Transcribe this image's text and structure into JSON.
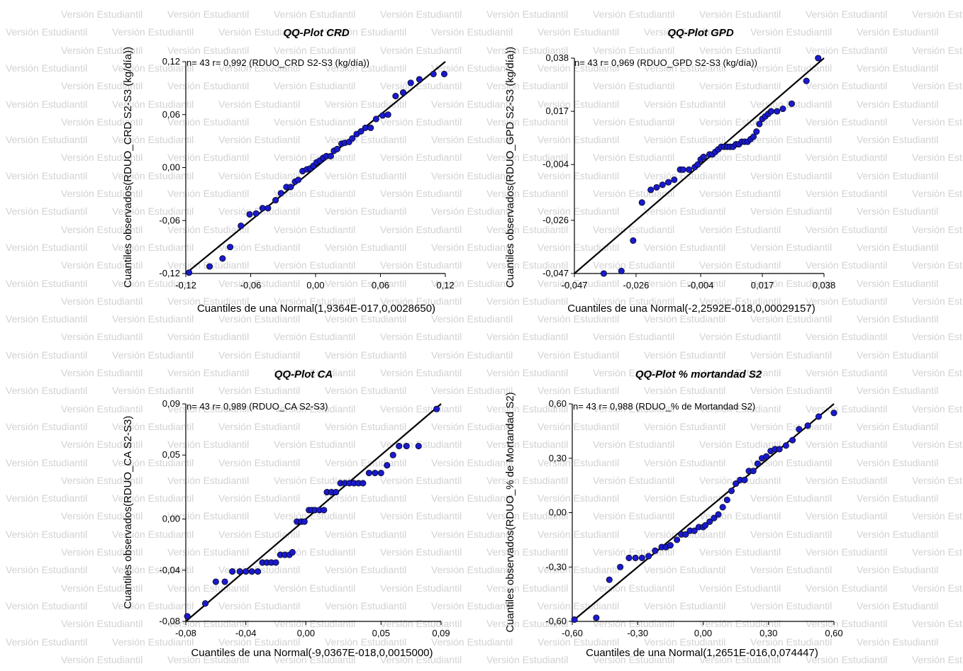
{
  "watermark_text": "Versión Estudiantil",
  "marker_color": "#1a1acc",
  "line_color": "#000000",
  "chart_data": [
    {
      "type": "scatter",
      "title": "QQ-Plot CRD",
      "annotation": "n= 43 r= 0,992 (RDUO_CRD S2-S3 (kg/día))",
      "xlabel": "Cuantiles de una Normal(1,9364E-017,0,0028650)",
      "ylabel": "Cuantiles observados(RDUO_CRD S2-S3 (kg/día))",
      "xlim": [
        -0.12,
        0.12
      ],
      "ylim": [
        -0.12,
        0.12
      ],
      "xticks": [
        -0.12,
        -0.06,
        0.0,
        0.06,
        0.12
      ],
      "xtick_labels": [
        "-0,12",
        "-0,06",
        "0,00",
        "0,06",
        "0,12"
      ],
      "yticks": [
        -0.12,
        -0.06,
        0.0,
        0.06,
        0.12
      ],
      "ytick_labels": [
        "-0,12",
        "-0,06",
        "0,00",
        "0,06",
        "0,12"
      ],
      "reference_line": [
        [
          -0.12,
          -0.12
        ],
        [
          0.12,
          0.12
        ]
      ],
      "points": [
        [
          -0.117,
          -0.119
        ],
        [
          -0.098,
          -0.112
        ],
        [
          -0.086,
          -0.103
        ],
        [
          -0.079,
          -0.09
        ],
        [
          -0.069,
          -0.066
        ],
        [
          -0.061,
          -0.053
        ],
        [
          -0.055,
          -0.052
        ],
        [
          -0.049,
          -0.046
        ],
        [
          -0.044,
          -0.046
        ],
        [
          -0.037,
          -0.037
        ],
        [
          -0.032,
          -0.029
        ],
        [
          -0.027,
          -0.022
        ],
        [
          -0.023,
          -0.022
        ],
        [
          -0.019,
          -0.016
        ],
        [
          -0.016,
          -0.014
        ],
        [
          -0.012,
          -0.004
        ],
        [
          -0.008,
          -0.002
        ],
        [
          -0.005,
          -0.001
        ],
        [
          -0.002,
          0.002
        ],
        [
          0.001,
          0.006
        ],
        [
          0.004,
          0.008
        ],
        [
          0.007,
          0.011
        ],
        [
          0.01,
          0.013
        ],
        [
          0.014,
          0.013
        ],
        [
          0.017,
          0.019
        ],
        [
          0.02,
          0.021
        ],
        [
          0.024,
          0.027
        ],
        [
          0.027,
          0.028
        ],
        [
          0.031,
          0.029
        ],
        [
          0.034,
          0.033
        ],
        [
          0.038,
          0.038
        ],
        [
          0.042,
          0.041
        ],
        [
          0.046,
          0.045
        ],
        [
          0.051,
          0.045
        ],
        [
          0.056,
          0.055
        ],
        [
          0.062,
          0.059
        ],
        [
          0.067,
          0.06
        ],
        [
          0.074,
          0.081
        ],
        [
          0.081,
          0.085
        ],
        [
          0.088,
          0.096
        ],
        [
          0.096,
          0.1
        ],
        [
          0.109,
          0.106
        ],
        [
          0.119,
          0.106
        ]
      ]
    },
    {
      "type": "scatter",
      "title": "QQ-Plot GPD",
      "annotation": "n= 43 r= 0,969 (RDUO_GPD S2-S3 (kg/día))",
      "xlabel": "Cuantiles de una Normal(-2,2592E-018,0,00029157)",
      "ylabel": "Cuantiles observados(RDUO_GPD S2-S3 (kg/día))",
      "xlim": [
        -0.047,
        0.038
      ],
      "ylim": [
        -0.047,
        0.038
      ],
      "xticks": [
        -0.047,
        -0.026,
        -0.004,
        0.017,
        0.038
      ],
      "xtick_labels": [
        "-0,047",
        "-0,026",
        "-0,004",
        "0,017",
        "0,038"
      ],
      "yticks": [
        -0.047,
        -0.026,
        -0.004,
        0.017,
        0.038
      ],
      "ytick_labels": [
        "-0,047",
        "-0,026",
        "-0,004",
        "0,017",
        "0,038"
      ],
      "reference_line": [
        [
          -0.047,
          -0.047
        ],
        [
          0.038,
          0.038
        ]
      ],
      "points": [
        [
          -0.037,
          -0.047
        ],
        [
          -0.031,
          -0.046
        ],
        [
          -0.027,
          -0.034
        ],
        [
          -0.024,
          -0.019
        ],
        [
          -0.021,
          -0.014
        ],
        [
          -0.019,
          -0.013
        ],
        [
          -0.017,
          -0.012
        ],
        [
          -0.015,
          -0.011
        ],
        [
          -0.013,
          -0.01
        ],
        [
          -0.011,
          -0.006
        ],
        [
          -0.01,
          -0.006
        ],
        [
          -0.008,
          -0.006
        ],
        [
          -0.006,
          -0.005
        ],
        [
          -0.005,
          -0.004
        ],
        [
          -0.004,
          -0.002
        ],
        [
          -0.003,
          -0.001
        ],
        [
          -0.001,
          0.0
        ],
        [
          0.0,
          0.0
        ],
        [
          0.001,
          0.001
        ],
        [
          0.002,
          0.002
        ],
        [
          0.003,
          0.003
        ],
        [
          0.004,
          0.003
        ],
        [
          0.005,
          0.003
        ],
        [
          0.006,
          0.003
        ],
        [
          0.007,
          0.003
        ],
        [
          0.008,
          0.004
        ],
        [
          0.009,
          0.004
        ],
        [
          0.01,
          0.005
        ],
        [
          0.011,
          0.005
        ],
        [
          0.012,
          0.005
        ],
        [
          0.013,
          0.006
        ],
        [
          0.014,
          0.007
        ],
        [
          0.015,
          0.009
        ],
        [
          0.016,
          0.012
        ],
        [
          0.017,
          0.014
        ],
        [
          0.018,
          0.015
        ],
        [
          0.019,
          0.016
        ],
        [
          0.02,
          0.017
        ],
        [
          0.022,
          0.017
        ],
        [
          0.024,
          0.018
        ],
        [
          0.027,
          0.02
        ],
        [
          0.032,
          0.029
        ],
        [
          0.036,
          0.038
        ]
      ]
    },
    {
      "type": "scatter",
      "title": "QQ-Plot CA",
      "annotation": "n= 43 r= 0,989 (RDUO_CA S2-S3)",
      "xlabel": "Cuantiles de una Normal(-9,0367E-018,0,0015000)",
      "ylabel": "Cuantiles observados(RDUO_CA S2-S3)",
      "xlim": [
        -0.08,
        0.09
      ],
      "ylim": [
        -0.08,
        0.09
      ],
      "xticks": [
        -0.08,
        -0.04,
        0.0,
        0.05,
        0.09
      ],
      "xtick_labels": [
        "-0,08",
        "-0,04",
        "0,00",
        "0,05",
        "0,09"
      ],
      "yticks": [
        -0.08,
        -0.04,
        0.0,
        0.05,
        0.09
      ],
      "ytick_labels": [
        "-0,08",
        "-0,04",
        "0,00",
        "0,05",
        "0,09"
      ],
      "reference_line": [
        [
          -0.08,
          -0.08
        ],
        [
          0.09,
          0.09
        ]
      ],
      "points": [
        [
          -0.079,
          -0.076
        ],
        [
          -0.067,
          -0.066
        ],
        [
          -0.06,
          -0.049
        ],
        [
          -0.054,
          -0.049
        ],
        [
          -0.049,
          -0.041
        ],
        [
          -0.044,
          -0.041
        ],
        [
          -0.04,
          -0.041
        ],
        [
          -0.036,
          -0.041
        ],
        [
          -0.032,
          -0.041
        ],
        [
          -0.029,
          -0.034
        ],
        [
          -0.026,
          -0.034
        ],
        [
          -0.023,
          -0.034
        ],
        [
          -0.02,
          -0.034
        ],
        [
          -0.017,
          -0.028
        ],
        [
          -0.014,
          -0.028
        ],
        [
          -0.011,
          -0.028
        ],
        [
          -0.009,
          -0.026
        ],
        [
          -0.006,
          -0.002
        ],
        [
          -0.003,
          -0.002
        ],
        [
          -0.001,
          -0.002
        ],
        [
          0.002,
          0.007
        ],
        [
          0.004,
          0.007
        ],
        [
          0.006,
          0.007
        ],
        [
          0.009,
          0.007
        ],
        [
          0.012,
          0.007
        ],
        [
          0.014,
          0.021
        ],
        [
          0.017,
          0.021
        ],
        [
          0.02,
          0.021
        ],
        [
          0.023,
          0.028
        ],
        [
          0.026,
          0.028
        ],
        [
          0.029,
          0.028
        ],
        [
          0.032,
          0.028
        ],
        [
          0.035,
          0.028
        ],
        [
          0.038,
          0.028
        ],
        [
          0.042,
          0.036
        ],
        [
          0.046,
          0.036
        ],
        [
          0.05,
          0.036
        ],
        [
          0.054,
          0.042
        ],
        [
          0.058,
          0.05
        ],
        [
          0.062,
          0.057
        ],
        [
          0.067,
          0.057
        ],
        [
          0.075,
          0.057
        ],
        [
          0.087,
          0.086
        ]
      ]
    },
    {
      "type": "scatter",
      "title": "QQ-Plot % mortandad S2",
      "annotation": "n= 43 r= 0,988 (RDUO_% de Mortandad S2)",
      "xlabel": "Cuantiles de una Normal(1,2651E-016,0,074447)",
      "ylabel": "Cuantiles observados(RDUO_% de Mortandad S2)",
      "xlim": [
        -0.6,
        0.6
      ],
      "ylim": [
        -0.6,
        0.6
      ],
      "xticks": [
        -0.6,
        -0.3,
        0.0,
        0.3,
        0.6
      ],
      "xtick_labels": [
        "-0,60",
        "-0,30",
        "0,00",
        "0,30",
        "0,60"
      ],
      "yticks": [
        -0.6,
        -0.3,
        0.0,
        0.3,
        0.6
      ],
      "ytick_labels": [
        "-0,60",
        "-0,30",
        "0,00",
        "0,30",
        "0,60"
      ],
      "reference_line": [
        [
          -0.6,
          -0.6
        ],
        [
          0.6,
          0.6
        ]
      ],
      "points": [
        [
          -0.59,
          -0.59
        ],
        [
          -0.49,
          -0.58
        ],
        [
          -0.43,
          -0.37
        ],
        [
          -0.38,
          -0.3
        ],
        [
          -0.34,
          -0.25
        ],
        [
          -0.31,
          -0.25
        ],
        [
          -0.28,
          -0.25
        ],
        [
          -0.25,
          -0.24
        ],
        [
          -0.22,
          -0.21
        ],
        [
          -0.19,
          -0.19
        ],
        [
          -0.17,
          -0.19
        ],
        [
          -0.15,
          -0.18
        ],
        [
          -0.12,
          -0.15
        ],
        [
          -0.1,
          -0.12
        ],
        [
          -0.08,
          -0.12
        ],
        [
          -0.06,
          -0.1
        ],
        [
          -0.04,
          -0.1
        ],
        [
          -0.02,
          -0.08
        ],
        [
          0.0,
          -0.08
        ],
        [
          0.01,
          -0.07
        ],
        [
          0.03,
          -0.05
        ],
        [
          0.05,
          -0.03
        ],
        [
          0.07,
          -0.01
        ],
        [
          0.09,
          0.03
        ],
        [
          0.11,
          0.07
        ],
        [
          0.13,
          0.12
        ],
        [
          0.15,
          0.16
        ],
        [
          0.17,
          0.18
        ],
        [
          0.19,
          0.18
        ],
        [
          0.21,
          0.23
        ],
        [
          0.23,
          0.23
        ],
        [
          0.25,
          0.27
        ],
        [
          0.27,
          0.3
        ],
        [
          0.29,
          0.31
        ],
        [
          0.31,
          0.34
        ],
        [
          0.33,
          0.35
        ],
        [
          0.35,
          0.35
        ],
        [
          0.38,
          0.37
        ],
        [
          0.41,
          0.4
        ],
        [
          0.44,
          0.46
        ],
        [
          0.48,
          0.48
        ],
        [
          0.53,
          0.53
        ],
        [
          0.6,
          0.55
        ]
      ]
    }
  ]
}
